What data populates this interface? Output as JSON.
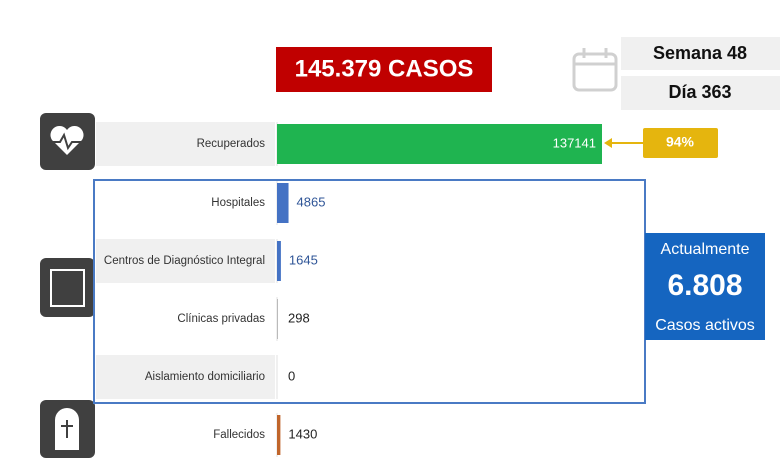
{
  "total_label": "145.379 CASOS",
  "week": "Semana 48",
  "day": "Día 363",
  "recovered_share": "94%",
  "active": {
    "heading": "Actualmente",
    "number": "6.808",
    "caption": "Casos activos"
  },
  "chart_data": {
    "type": "bar",
    "orientation": "horizontal",
    "categories": [
      "Recuperados",
      "Hospitales",
      "Centros de Diagnóstico Integral",
      "Clínicas privadas",
      "Aislamiento domiciliario",
      "Fallecidos"
    ],
    "values": [
      137141,
      4865,
      1645,
      298,
      0,
      1430
    ],
    "colors": [
      "#1fb450",
      "#4472c4",
      "#4472c4",
      "#9e9e9e",
      "#9e9e9e",
      "#c0652b"
    ]
  }
}
